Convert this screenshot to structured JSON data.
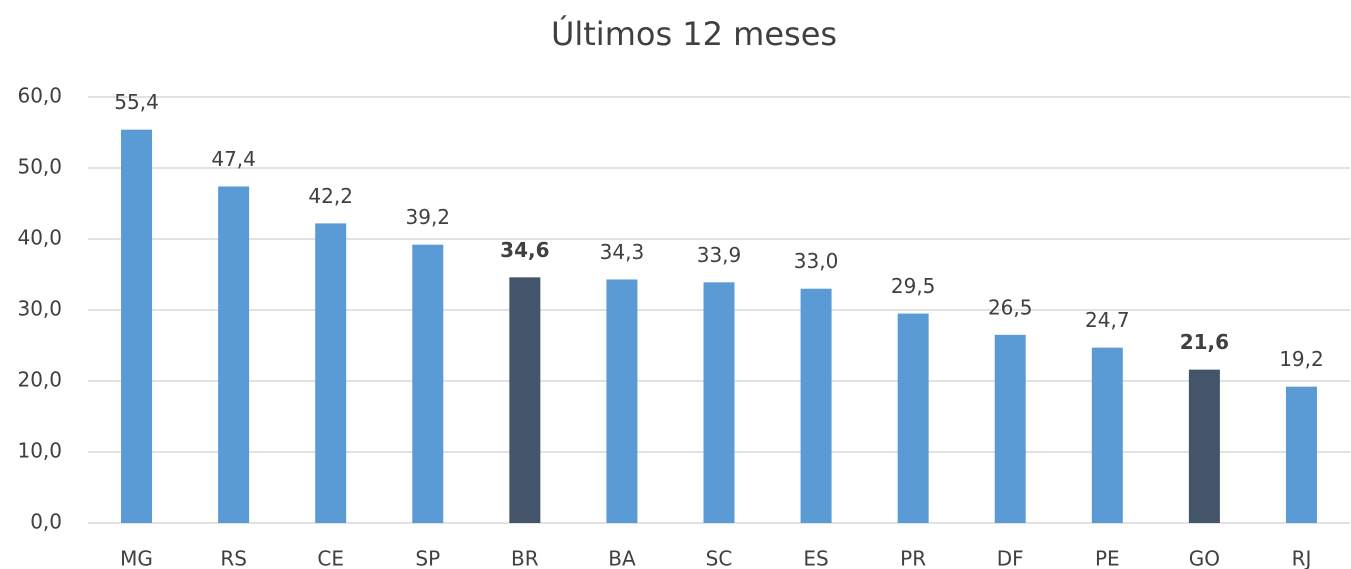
{
  "chart_data": {
    "type": "bar",
    "title": "Últimos 12 meses",
    "categories": [
      "MG",
      "RS",
      "CE",
      "SP",
      "BR",
      "BA",
      "SC",
      "ES",
      "PR",
      "DF",
      "PE",
      "GO",
      "RJ"
    ],
    "values": [
      55.4,
      47.4,
      42.2,
      39.2,
      34.6,
      34.3,
      33.9,
      33.0,
      29.5,
      26.5,
      24.7,
      21.6,
      19.2
    ],
    "value_labels": [
      "55,4",
      "47,4",
      "42,2",
      "39,2",
      "34,6",
      "34,3",
      "33,9",
      "33,0",
      "29,5",
      "26,5",
      "24,7",
      "21,6",
      "19,2"
    ],
    "colors": [
      "#5b9bd5",
      "#5b9bd5",
      "#5b9bd5",
      "#5b9bd5",
      "#44546a",
      "#5b9bd5",
      "#5b9bd5",
      "#5b9bd5",
      "#5b9bd5",
      "#5b9bd5",
      "#5b9bd5",
      "#44546a",
      "#5b9bd5"
    ],
    "label_weights": [
      "normal",
      "normal",
      "normal",
      "normal",
      "bold",
      "normal",
      "normal",
      "normal",
      "normal",
      "normal",
      "normal",
      "bold",
      "normal"
    ],
    "ylim": [
      0,
      60
    ],
    "yticks": [
      {
        "value": 0,
        "label": "0,0"
      },
      {
        "value": 10,
        "label": "10,0"
      },
      {
        "value": 20,
        "label": "20,0"
      },
      {
        "value": 30,
        "label": "30,0"
      },
      {
        "value": 40,
        "label": "40,0"
      },
      {
        "value": 50,
        "label": "50,0"
      },
      {
        "value": 60,
        "label": "60,0"
      }
    ],
    "grid": true
  }
}
